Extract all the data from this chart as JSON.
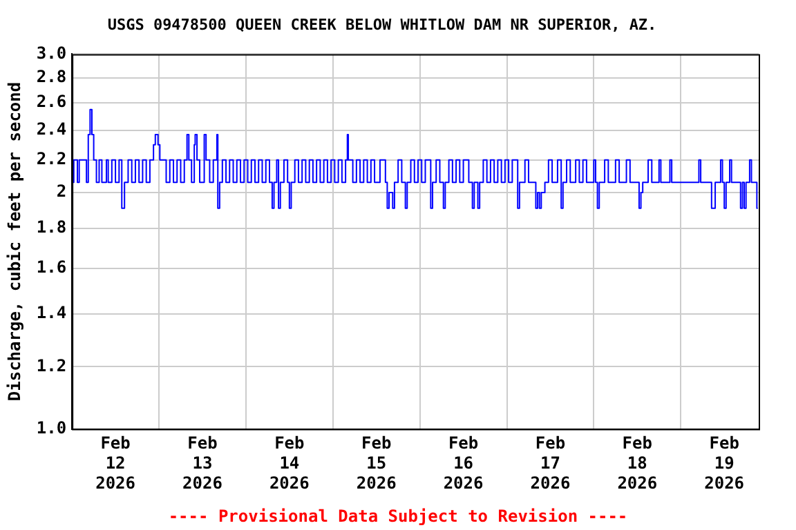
{
  "chart_data": {
    "type": "step",
    "title": "USGS 09478500 QUEEN CREEK BELOW WHITLOW DAM NR SUPERIOR, AZ.",
    "ylabel": "Discharge, cubic feet per second",
    "annotations": [
      "---- Provisional Data Subject to Revision ----"
    ],
    "log": true,
    "grid": true,
    "legend": false,
    "marker": "none",
    "ylim": [
      1,
      3
    ],
    "yticks": [
      {
        "value": 1,
        "label": "1.0"
      },
      1.2,
      1.4,
      1.6,
      1.8,
      2,
      2.2,
      2.4,
      2.6,
      2.8,
      {
        "value": 3,
        "label": "3.0"
      }
    ],
    "xlim": [
      "2026-02-12T00:00",
      "2026-02-19T21:30"
    ],
    "xticks": [
      {
        "value": "2026-02-12T12:00",
        "label": "Feb\n12\n2026"
      },
      {
        "value": "2026-02-13T00:00",
        "label": null
      },
      {
        "value": "2026-02-13T12:00",
        "label": "Feb\n13\n2026"
      },
      {
        "value": "2026-02-14T00:00",
        "label": null
      },
      {
        "value": "2026-02-14T12:00",
        "label": "Feb\n14\n2026"
      },
      {
        "value": "2026-02-15T00:00",
        "label": null
      },
      {
        "value": "2026-02-15T12:00",
        "label": "Feb\n15\n2026"
      },
      {
        "value": "2026-02-16T00:00",
        "label": null
      },
      {
        "value": "2026-02-16T12:00",
        "label": "Feb\n16\n2026"
      },
      {
        "value": "2026-02-17T00:00",
        "label": null
      },
      {
        "value": "2026-02-17T12:00",
        "label": "Feb\n17\n2026"
      },
      {
        "value": "2026-02-18T00:00",
        "label": null
      },
      {
        "value": "2026-02-18T12:00",
        "label": "Feb\n18\n2026"
      },
      {
        "value": "2026-02-19T00:00",
        "label": null
      },
      {
        "value": "2026-02-19T12:00",
        "label": "Feb\n19\n2026"
      }
    ],
    "series": [
      {
        "color": "#0000ff",
        "x": [
          "2026-02-12T00:00",
          "2026-02-12T00:30",
          "2026-02-12T01:30",
          "2026-02-12T02:00",
          "2026-02-12T04:00",
          "2026-02-12T04:30",
          "2026-02-12T05:00",
          "2026-02-12T05:30",
          "2026-02-12T06:00",
          "2026-02-12T06:45",
          "2026-02-12T07:30",
          "2026-02-12T08:15",
          "2026-02-12T09:30",
          "2026-02-12T10:00",
          "2026-02-12T11:00",
          "2026-02-12T12:00",
          "2026-02-12T13:00",
          "2026-02-12T13:45",
          "2026-02-12T14:30",
          "2026-02-12T15:30",
          "2026-02-12T16:30",
          "2026-02-12T17:30",
          "2026-02-12T18:30",
          "2026-02-12T19:30",
          "2026-02-12T20:30",
          "2026-02-12T21:30",
          "2026-02-12T22:30",
          "2026-02-12T23:00",
          "2026-02-12T23:45",
          "2026-02-13T00:15",
          "2026-02-13T02:00",
          "2026-02-13T03:00",
          "2026-02-13T04:00",
          "2026-02-13T05:00",
          "2026-02-13T06:00",
          "2026-02-13T07:00",
          "2026-02-13T07:45",
          "2026-02-13T08:15",
          "2026-02-13T09:00",
          "2026-02-13T09:45",
          "2026-02-13T10:00",
          "2026-02-13T10:30",
          "2026-02-13T11:15",
          "2026-02-13T12:30",
          "2026-02-13T13:00",
          "2026-02-13T14:00",
          "2026-02-13T15:00",
          "2026-02-13T16:00",
          "2026-02-13T16:15",
          "2026-02-13T16:45",
          "2026-02-13T17:30",
          "2026-02-13T18:30",
          "2026-02-13T19:30",
          "2026-02-13T20:30",
          "2026-02-13T21:30",
          "2026-02-13T22:30",
          "2026-02-13T23:30",
          "2026-02-14T00:30",
          "2026-02-14T01:30",
          "2026-02-14T02:30",
          "2026-02-14T03:30",
          "2026-02-14T04:30",
          "2026-02-14T05:30",
          "2026-02-14T06:30",
          "2026-02-14T07:15",
          "2026-02-14T07:45",
          "2026-02-14T08:30",
          "2026-02-14T09:00",
          "2026-02-14T09:30",
          "2026-02-14T10:30",
          "2026-02-14T11:30",
          "2026-02-14T12:00",
          "2026-02-14T12:30",
          "2026-02-14T13:30",
          "2026-02-14T14:30",
          "2026-02-14T15:30",
          "2026-02-14T16:30",
          "2026-02-14T17:30",
          "2026-02-14T18:30",
          "2026-02-14T19:30",
          "2026-02-14T20:30",
          "2026-02-14T21:30",
          "2026-02-14T22:30",
          "2026-02-14T23:30",
          "2026-02-15T00:30",
          "2026-02-15T01:30",
          "2026-02-15T02:30",
          "2026-02-15T03:30",
          "2026-02-15T04:00",
          "2026-02-15T04:15",
          "2026-02-15T05:30",
          "2026-02-15T06:30",
          "2026-02-15T07:30",
          "2026-02-15T08:30",
          "2026-02-15T09:30",
          "2026-02-15T10:30",
          "2026-02-15T11:30",
          "2026-02-15T13:00",
          "2026-02-15T14:30",
          "2026-02-15T15:00",
          "2026-02-15T15:30",
          "2026-02-15T16:30",
          "2026-02-15T17:00",
          "2026-02-15T18:00",
          "2026-02-15T19:00",
          "2026-02-15T20:00",
          "2026-02-15T20:30",
          "2026-02-15T21:30",
          "2026-02-15T22:30",
          "2026-02-15T23:30",
          "2026-02-16T00:30",
          "2026-02-16T01:30",
          "2026-02-16T03:00",
          "2026-02-16T03:30",
          "2026-02-16T04:30",
          "2026-02-16T05:30",
          "2026-02-16T06:30",
          "2026-02-16T07:00",
          "2026-02-16T08:00",
          "2026-02-16T09:00",
          "2026-02-16T10:00",
          "2026-02-16T11:00",
          "2026-02-16T12:00",
          "2026-02-16T13:30",
          "2026-02-16T14:30",
          "2026-02-16T15:00",
          "2026-02-16T16:00",
          "2026-02-16T16:30",
          "2026-02-16T17:30",
          "2026-02-16T18:30",
          "2026-02-16T19:30",
          "2026-02-16T20:30",
          "2026-02-16T21:30",
          "2026-02-16T22:30",
          "2026-02-16T23:30",
          "2026-02-17T00:30",
          "2026-02-17T01:30",
          "2026-02-17T03:00",
          "2026-02-17T03:30",
          "2026-02-17T05:00",
          "2026-02-17T06:00",
          "2026-02-17T08:00",
          "2026-02-17T08:30",
          "2026-02-17T09:00",
          "2026-02-17T09:30",
          "2026-02-17T10:30",
          "2026-02-17T11:30",
          "2026-02-17T12:30",
          "2026-02-17T14:00",
          "2026-02-17T15:00",
          "2026-02-17T15:30",
          "2026-02-17T16:30",
          "2026-02-17T17:30",
          "2026-02-17T19:00",
          "2026-02-17T20:00",
          "2026-02-17T21:00",
          "2026-02-17T22:00",
          "2026-02-18T00:00",
          "2026-02-18T00:30",
          "2026-02-18T01:00",
          "2026-02-18T01:30",
          "2026-02-18T03:00",
          "2026-02-18T04:00",
          "2026-02-18T06:00",
          "2026-02-18T07:00",
          "2026-02-18T09:00",
          "2026-02-18T10:00",
          "2026-02-18T12:30",
          "2026-02-18T13:00",
          "2026-02-18T13:30",
          "2026-02-18T15:00",
          "2026-02-18T16:00",
          "2026-02-18T18:00",
          "2026-02-18T18:30",
          "2026-02-18T21:00",
          "2026-02-18T21:30",
          "2026-02-19T05:00",
          "2026-02-19T05:30",
          "2026-02-19T08:30",
          "2026-02-19T09:30",
          "2026-02-19T11:00",
          "2026-02-19T11:30",
          "2026-02-19T12:00",
          "2026-02-19T12:30",
          "2026-02-19T13:30",
          "2026-02-19T14:00",
          "2026-02-19T16:30",
          "2026-02-19T17:00",
          "2026-02-19T17:30",
          "2026-02-19T18:00",
          "2026-02-19T19:00",
          "2026-02-19T19:30",
          "2026-02-19T21:00",
          "2026-02-19T21:15"
        ],
        "values": [
          2.06,
          2.2,
          2.06,
          2.2,
          2.06,
          2.37,
          2.55,
          2.37,
          2.2,
          2.06,
          2.2,
          2.06,
          2.2,
          2.06,
          2.2,
          2.06,
          2.2,
          1.91,
          2.06,
          2.2,
          2.06,
          2.2,
          2.06,
          2.2,
          2.06,
          2.2,
          2.3,
          2.37,
          2.3,
          2.2,
          2.06,
          2.2,
          2.06,
          2.2,
          2.06,
          2.2,
          2.37,
          2.2,
          2.06,
          2.3,
          2.37,
          2.2,
          2.06,
          2.37,
          2.2,
          2.06,
          2.2,
          2.37,
          1.91,
          2.06,
          2.2,
          2.06,
          2.2,
          2.06,
          2.2,
          2.06,
          2.2,
          2.06,
          2.2,
          2.06,
          2.2,
          2.06,
          2.2,
          2.06,
          1.91,
          2.06,
          2.2,
          1.91,
          2.06,
          2.2,
          2.06,
          1.91,
          2.06,
          2.2,
          2.06,
          2.2,
          2.06,
          2.2,
          2.06,
          2.2,
          2.06,
          2.2,
          2.06,
          2.2,
          2.06,
          2.2,
          2.06,
          2.2,
          2.37,
          2.2,
          2.06,
          2.2,
          2.06,
          2.2,
          2.06,
          2.2,
          2.06,
          2.2,
          2.06,
          1.91,
          2.0,
          1.91,
          2.06,
          2.2,
          2.06,
          1.91,
          2.06,
          2.2,
          2.06,
          2.2,
          2.06,
          2.2,
          1.91,
          2.06,
          2.2,
          2.06,
          1.91,
          2.06,
          2.2,
          2.06,
          2.2,
          2.06,
          2.2,
          2.06,
          1.91,
          2.06,
          1.91,
          2.06,
          2.2,
          2.06,
          2.2,
          2.06,
          2.2,
          2.06,
          2.2,
          2.06,
          2.2,
          1.91,
          2.06,
          2.2,
          2.06,
          1.91,
          2.0,
          1.91,
          2.0,
          2.06,
          2.2,
          2.06,
          2.2,
          1.91,
          2.06,
          2.2,
          2.06,
          2.2,
          2.06,
          2.2,
          2.06,
          2.2,
          2.06,
          1.91,
          2.06,
          2.2,
          2.06,
          2.2,
          2.06,
          2.2,
          2.06,
          1.91,
          2.0,
          2.06,
          2.2,
          2.06,
          2.2,
          2.06,
          2.2,
          2.06,
          2.2,
          2.06,
          1.91,
          2.06,
          2.2,
          2.06,
          1.91,
          2.06,
          2.2,
          2.06,
          1.91,
          2.06,
          1.91,
          2.06,
          2.2,
          2.06,
          1.91,
          1.91
        ]
      }
    ]
  }
}
